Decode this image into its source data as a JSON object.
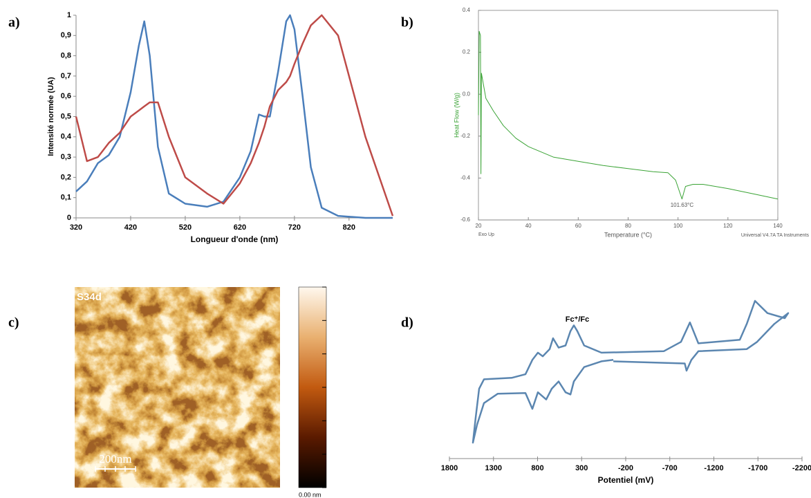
{
  "chart_data": [
    {
      "type": "line",
      "panel_label": "a)",
      "x_label": "Longueur d'onde (nm)",
      "y_label": "Intensité normée (UA)",
      "x": [
        320,
        340,
        360,
        380,
        400,
        420,
        435,
        445,
        455,
        470,
        490,
        520,
        560,
        590,
        620,
        640,
        655,
        665,
        675,
        690,
        705,
        712,
        720,
        735,
        750,
        770,
        800,
        850,
        900
      ],
      "series": [
        {
          "color": "#4a7ebb",
          "values": [
            0.13,
            0.18,
            0.27,
            0.31,
            0.4,
            0.62,
            0.85,
            0.97,
            0.8,
            0.35,
            0.12,
            0.07,
            0.055,
            0.08,
            0.2,
            0.33,
            0.51,
            0.5,
            0.5,
            0.72,
            0.97,
            1,
            0.93,
            0.6,
            0.25,
            0.05,
            0.01,
            0,
            0
          ]
        },
        {
          "color": "#be4b48",
          "values": [
            0.5,
            0.28,
            0.3,
            0.37,
            0.42,
            0.5,
            0.53,
            0.55,
            0.57,
            0.57,
            0.4,
            0.2,
            0.12,
            0.07,
            0.17,
            0.27,
            0.37,
            0.45,
            0.55,
            0.63,
            0.67,
            0.7,
            0.76,
            0.86,
            0.95,
            1,
            0.9,
            0.4,
            0.01
          ]
        }
      ],
      "xlim": [
        320,
        900
      ],
      "xticks": [
        320,
        420,
        520,
        620,
        720,
        820
      ],
      "ylim": [
        0,
        1
      ],
      "yticks": [
        0,
        {
          "value": 0.1,
          "label": "0,1"
        },
        {
          "value": 0.2,
          "label": "0,2"
        },
        {
          "value": 0.3,
          "label": "0,3"
        },
        {
          "value": 0.4,
          "label": "0,4"
        },
        {
          "value": 0.5,
          "label": "0,5"
        },
        {
          "value": 0.6,
          "label": "0,6"
        },
        {
          "value": 0.7,
          "label": "0,7"
        },
        {
          "value": 0.8,
          "label": "0,8"
        },
        {
          "value": 0.9,
          "label": "0,9"
        },
        1
      ]
    },
    {
      "type": "line",
      "panel_label": "b)",
      "x_label": "Temperature (°C)",
      "y_label": "Heat Flow (W/g)",
      "annotation": "101.63°C",
      "note_left": "Exo Up",
      "note_right": "Universal V4.7A TA Instruments",
      "x": [
        20,
        20.3,
        20.8,
        21,
        21.2,
        23,
        26,
        30,
        35,
        40,
        50,
        60,
        70,
        80,
        90,
        96,
        99,
        101.6,
        103,
        106,
        110,
        120,
        130,
        140
      ],
      "series": [
        {
          "color": "#3aa335",
          "values": [
            -0.1,
            0.3,
            0.28,
            -0.38,
            0.1,
            -0.02,
            -0.08,
            -0.15,
            -0.21,
            -0.25,
            -0.3,
            -0.32,
            -0.34,
            -0.355,
            -0.37,
            -0.375,
            -0.41,
            -0.5,
            -0.44,
            -0.43,
            -0.43,
            -0.45,
            -0.475,
            -0.5
          ]
        }
      ],
      "xlim": [
        20,
        140
      ],
      "xticks": [
        20,
        40,
        60,
        80,
        100,
        120,
        140
      ],
      "ylim": [
        -0.6,
        0.4
      ],
      "yticks": [
        -0.6,
        -0.4,
        -0.2,
        {
          "value": 0,
          "label": "0.0"
        },
        0.2,
        0.4
      ]
    },
    {
      "type": "image",
      "panel_label": "c)",
      "sample_label": "S34d",
      "scale_bar": "200nm",
      "colorbar_min": "0.00 nm"
    },
    {
      "type": "line",
      "panel_label": "d)",
      "x_label": "Potentiel (mV)",
      "annotation": "Fc⁺/Fc",
      "x": [
        -60,
        -870,
        -890,
        -945,
        -1024,
        -1573,
        -1690,
        -1886,
        -2043,
        -2004,
        -1808,
        -1667,
        -1573,
        -1494,
        -1024,
        -929,
        -827,
        -631,
        75,
        271,
        349,
        388,
        427,
        482,
        561,
        624,
        663,
        741,
        796,
        859,
        937,
        1094,
        1408,
        1463,
        1502,
        1533,
        1486,
        1408,
        1251,
        937,
        859,
        796,
        702,
        639,
        561,
        482,
        427,
        388,
        271,
        75,
        -60
      ],
      "series": [
        {
          "color": "#5b86b0",
          "values": [
            3.8,
            3.5,
            2.5,
            4.0,
            5.2,
            5.5,
            6.5,
            9.0,
            10.5,
            9.8,
            10.5,
            12.2,
            9.0,
            6.8,
            6.3,
            9.2,
            6.5,
            5.2,
            5.0,
            6.0,
            8.0,
            8.8,
            8.0,
            6.0,
            5.7,
            7.0,
            5.5,
            4.5,
            5.0,
            4.0,
            2.0,
            1.5,
            1.3,
            0,
            -4.0,
            -7.5,
            -5.0,
            -2.0,
            -0.7,
            -0.6,
            -2.8,
            -0.5,
            -1.5,
            0,
            1.0,
            -0.5,
            -0.8,
            1.0,
            3.0,
            3.8,
            4.0
          ]
        }
      ],
      "xlim": [
        1800,
        -2200
      ],
      "xticks": [
        1800,
        1300,
        800,
        300,
        -200,
        -700,
        -1200,
        -1700,
        -2200
      ]
    }
  ]
}
